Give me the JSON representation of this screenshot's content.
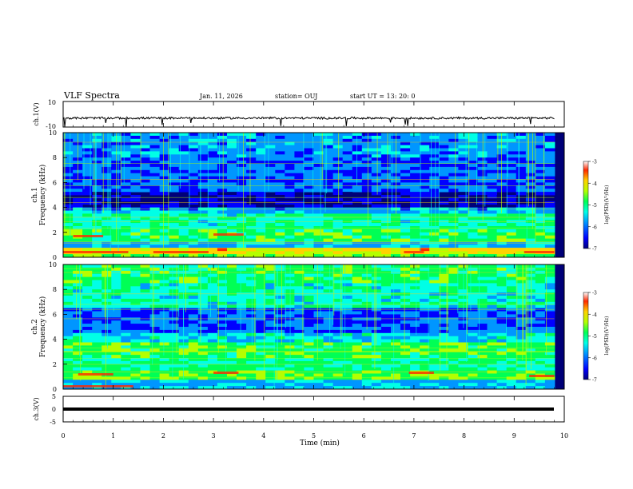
{
  "header": {
    "title": "VLF Spectra",
    "date": "Jan. 11, 2026",
    "station": "station= OUJ",
    "start": "start UT =  13: 20: 0"
  },
  "colors": {
    "colormap": [
      "#00007a",
      "#0000ff",
      "#0096ff",
      "#00ffe6",
      "#00ff55",
      "#b4ff00",
      "#ffd200",
      "#ff2800",
      "#c80000"
    ]
  },
  "chart_data": [
    {
      "type": "line",
      "panel": "ch1-waveform",
      "ylabel": "ch.1(V)",
      "ylim": [
        -10,
        10
      ],
      "yticks": [
        "10",
        "-10"
      ],
      "xlim": [
        0,
        10
      ],
      "series": [
        {
          "values_approx_constant": -3
        }
      ]
    },
    {
      "type": "heatmap",
      "panel": "ch1-spectrogram",
      "ylabel": "ch.1\nFrequency (kHz)",
      "ylabel_line1": "ch.1",
      "ylabel_line2": "Frequency (kHz)",
      "ylim": [
        0,
        10
      ],
      "yticks": [
        "0",
        "2",
        "4",
        "6",
        "8",
        "10"
      ],
      "xlim": [
        0,
        10
      ],
      "zlim": [
        -7,
        -3
      ],
      "colorbar_label": "log(PSD)(V²/Hz)",
      "colorbar_ticks": [
        "-3",
        "-4",
        "-5",
        "-6",
        "-7"
      ]
    },
    {
      "type": "heatmap",
      "panel": "ch2-spectrogram",
      "ylabel_line1": "ch.2",
      "ylabel_line2": "Frequency (kHz)",
      "ylim": [
        0,
        10
      ],
      "yticks": [
        "0",
        "2",
        "4",
        "6",
        "8",
        "10"
      ],
      "xlim": [
        0,
        10
      ],
      "zlim": [
        -7,
        -3
      ],
      "colorbar_label": "log(PSD)(V²/Hz)",
      "colorbar_ticks": [
        "-3",
        "-4",
        "-5",
        "-6",
        "-7"
      ]
    },
    {
      "type": "line",
      "panel": "ch3-waveform",
      "ylabel": "ch.3(V)",
      "ylim": [
        -5,
        5
      ],
      "yticks": [
        "5",
        "0",
        "-5"
      ],
      "xlim": [
        0,
        10
      ],
      "series": [
        {
          "values_approx_constant": -1
        }
      ]
    }
  ],
  "x_axis": {
    "label": "Time (min)",
    "ticks": [
      "0",
      "1",
      "2",
      "3",
      "4",
      "5",
      "6",
      "7",
      "8",
      "9",
      "10"
    ]
  }
}
